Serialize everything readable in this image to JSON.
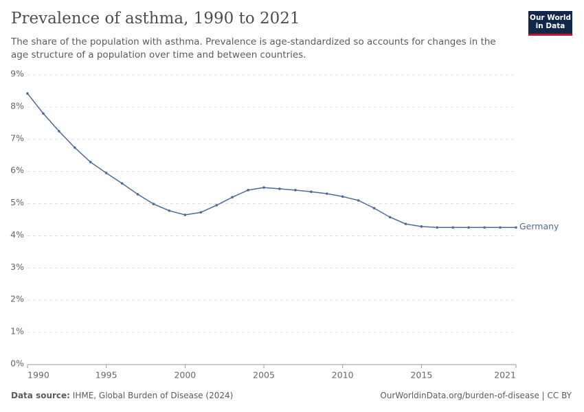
{
  "chart_data": {
    "type": "line",
    "title": "Prevalence of asthma, 1990 to 2021",
    "subtitle": "The share of the population with asthma. Prevalence is age-standardized so accounts for changes in the age structure of a population over time and between countries.",
    "logo": "Our World in Data",
    "source_label": "Data source:",
    "source": "IHME, Global Burden of Disease (2024)",
    "url": "OurWorldinData.org/burden-of-disease | CC BY",
    "x": [
      1990,
      1991,
      1992,
      1993,
      1994,
      1995,
      1996,
      1997,
      1998,
      1999,
      2000,
      2001,
      2002,
      2003,
      2004,
      2005,
      2006,
      2007,
      2008,
      2009,
      2010,
      2011,
      2012,
      2013,
      2014,
      2015,
      2016,
      2017,
      2018,
      2019,
      2020,
      2021
    ],
    "series": [
      {
        "name": "Germany",
        "color": "#4c6a9c",
        "values": [
          8.42,
          7.8,
          7.25,
          6.74,
          6.29,
          5.95,
          5.63,
          5.29,
          4.99,
          4.78,
          4.65,
          4.73,
          4.95,
          5.2,
          5.42,
          5.5,
          5.46,
          5.42,
          5.37,
          5.31,
          5.22,
          5.1,
          4.86,
          4.58,
          4.37,
          4.29,
          4.26,
          4.26,
          4.26,
          4.26,
          4.26,
          4.26
        ]
      }
    ],
    "xlim": [
      1990,
      2021
    ],
    "xticks": [
      1990,
      1995,
      2000,
      2005,
      2010,
      2015,
      2021
    ],
    "ylim": [
      0,
      9
    ],
    "yticks": [
      {
        "value": 0,
        "label": "0%"
      },
      {
        "value": 1,
        "label": "1%"
      },
      {
        "value": 2,
        "label": "2%"
      },
      {
        "value": 3,
        "label": "3%"
      },
      {
        "value": 4,
        "label": "4%"
      },
      {
        "value": 5,
        "label": "5%"
      },
      {
        "value": 6,
        "label": "6%"
      },
      {
        "value": 7,
        "label": "7%"
      },
      {
        "value": 8,
        "label": "8%"
      },
      {
        "value": 9,
        "label": "9%"
      }
    ],
    "grid": true
  }
}
